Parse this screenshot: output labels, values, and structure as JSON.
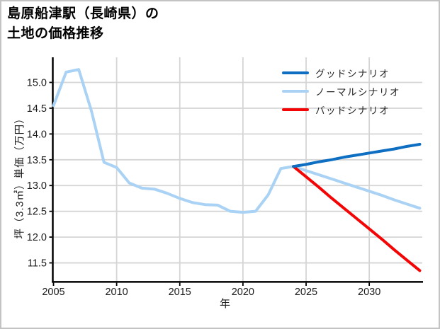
{
  "header": {
    "title_line1": "島原船津駅（長崎県）の",
    "title_line2": "土地の価格推移"
  },
  "chart_data": {
    "type": "line",
    "title": "島原船津駅（長崎県）の土地の価格推移",
    "xlabel": "年",
    "ylabel": "坪（3.3㎡）単価（万円）",
    "x_tick_values": [
      2005,
      2010,
      2015,
      2020,
      2025,
      2030
    ],
    "x_tick_labels": [
      "2005",
      "2010",
      "2015",
      "2020",
      "2025",
      "2030"
    ],
    "y_tick_values": [
      11.5,
      12.0,
      12.5,
      13.0,
      13.5,
      14.0,
      14.5,
      15.0
    ],
    "y_tick_labels": [
      "11.5",
      "12.0",
      "12.5",
      "13.0",
      "13.5",
      "14.0",
      "14.5",
      "15.0"
    ],
    "xlim": [
      2005,
      2034.2
    ],
    "ylim": [
      11.14,
      15.49
    ],
    "grid": true,
    "legend_position": "upper right",
    "draw_order": [
      1,
      2,
      0
    ],
    "series": [
      {
        "name": "グッドシナリオ",
        "color": "#0d6ec2",
        "x": [
          2024,
          2025,
          2026,
          2027,
          2028,
          2029,
          2030,
          2031,
          2032,
          2033,
          2034
        ],
        "values": [
          13.37,
          13.41,
          13.46,
          13.5,
          13.55,
          13.59,
          13.63,
          13.67,
          13.71,
          13.76,
          13.8
        ]
      },
      {
        "name": "ノーマルシナリオ",
        "color": "#a9d2f4",
        "x": [
          2005,
          2006,
          2007,
          2008,
          2009,
          2010,
          2011,
          2012,
          2013,
          2014,
          2015,
          2016,
          2017,
          2018,
          2019,
          2020,
          2021,
          2022,
          2023,
          2024,
          2025,
          2026,
          2027,
          2028,
          2029,
          2030,
          2031,
          2032,
          2033,
          2034
        ],
        "values": [
          14.55,
          15.2,
          15.25,
          14.45,
          13.45,
          13.35,
          13.05,
          12.95,
          12.93,
          12.85,
          12.75,
          12.67,
          12.63,
          12.62,
          12.5,
          12.48,
          12.5,
          12.82,
          13.33,
          13.37,
          13.29,
          13.21,
          13.13,
          13.05,
          12.97,
          12.89,
          12.81,
          12.72,
          12.64,
          12.56
        ]
      },
      {
        "name": "バッドシナリオ",
        "color": "#f40505",
        "x": [
          2024,
          2025,
          2026,
          2027,
          2028,
          2029,
          2030,
          2031,
          2032,
          2033,
          2034
        ],
        "values": [
          13.37,
          13.17,
          12.97,
          12.76,
          12.56,
          12.36,
          12.16,
          11.96,
          11.75,
          11.55,
          11.35
        ]
      }
    ],
    "colors": {
      "grid": "#d5d5d5",
      "axis": "#000000",
      "tick_label": "#1a1a1a",
      "legend_text": "#262626",
      "border": "#c3c3c3"
    }
  }
}
